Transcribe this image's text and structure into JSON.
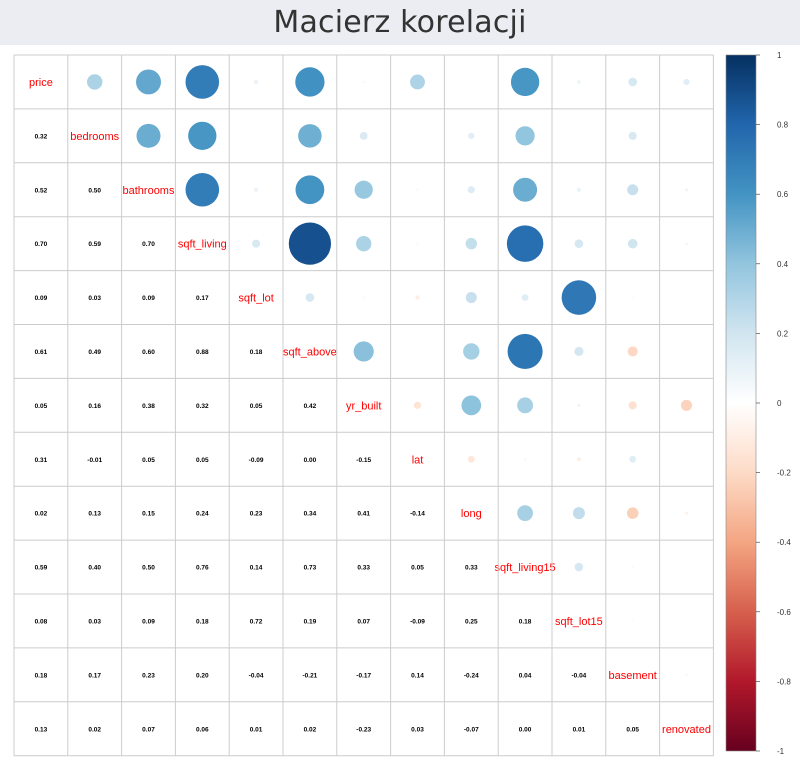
{
  "page": {
    "title": "Macierz korelacji"
  },
  "chart_data": {
    "type": "heatmap",
    "title": "Macierz korelacji",
    "variables": [
      "price",
      "bedrooms",
      "bathrooms",
      "sqft_living",
      "sqft_lot",
      "sqft_above",
      "yr_built",
      "lat",
      "long",
      "sqft_living15",
      "sqft_lot15",
      "basement",
      "renovated"
    ],
    "matrix": [
      [
        1.0,
        0.32,
        0.52,
        0.7,
        0.09,
        0.61,
        0.05,
        0.31,
        0.02,
        0.59,
        0.08,
        0.18,
        0.13
      ],
      [
        0.32,
        1.0,
        0.5,
        0.59,
        0.03,
        0.49,
        0.16,
        -0.01,
        0.13,
        0.4,
        0.03,
        0.17,
        0.02
      ],
      [
        0.52,
        0.5,
        1.0,
        0.7,
        0.09,
        0.6,
        0.38,
        0.05,
        0.15,
        0.5,
        0.09,
        0.23,
        0.07
      ],
      [
        0.7,
        0.59,
        0.7,
        1.0,
        0.17,
        0.88,
        0.32,
        0.05,
        0.24,
        0.76,
        0.18,
        0.2,
        0.06
      ],
      [
        0.09,
        0.03,
        0.09,
        0.17,
        1.0,
        0.18,
        0.05,
        -0.09,
        0.23,
        0.14,
        0.72,
        -0.04,
        0.01
      ],
      [
        0.61,
        0.49,
        0.6,
        0.88,
        0.18,
        1.0,
        0.42,
        0.0,
        0.34,
        0.73,
        0.19,
        -0.21,
        0.02
      ],
      [
        0.05,
        0.16,
        0.38,
        0.32,
        0.05,
        0.42,
        1.0,
        -0.15,
        0.41,
        0.33,
        0.07,
        -0.17,
        -0.23
      ],
      [
        0.31,
        -0.01,
        0.05,
        0.05,
        -0.09,
        0.0,
        -0.15,
        1.0,
        -0.14,
        0.05,
        -0.09,
        0.14,
        0.03
      ],
      [
        0.02,
        0.13,
        0.15,
        0.24,
        0.23,
        0.34,
        0.41,
        -0.14,
        1.0,
        0.33,
        0.25,
        -0.24,
        -0.07
      ],
      [
        0.59,
        0.4,
        0.5,
        0.76,
        0.14,
        0.73,
        0.33,
        0.05,
        0.33,
        1.0,
        0.18,
        0.04,
        0.0
      ],
      [
        0.08,
        0.03,
        0.09,
        0.18,
        0.72,
        0.19,
        0.07,
        -0.09,
        0.25,
        0.18,
        1.0,
        -0.04,
        0.01
      ],
      [
        0.18,
        0.17,
        0.23,
        0.2,
        -0.04,
        -0.21,
        -0.17,
        0.14,
        -0.24,
        0.04,
        -0.04,
        1.0,
        0.05
      ],
      [
        0.13,
        0.02,
        0.07,
        0.06,
        0.01,
        0.02,
        -0.23,
        0.03,
        -0.07,
        0.0,
        0.01,
        0.05,
        1.0
      ]
    ],
    "upper_triangle": "circle",
    "lower_triangle": "number",
    "diagonal": "label",
    "colorbar": {
      "range": [
        -1,
        1
      ],
      "ticks": [
        "1",
        "0.8",
        "0.6",
        "0.4",
        "0.2",
        "0",
        "-0.2",
        "-0.4",
        "-0.6",
        "-0.8",
        "-1"
      ],
      "palette": [
        "#67001f",
        "#b2182b",
        "#d6604d",
        "#f4a582",
        "#fddbc7",
        "#ffffff",
        "#d1e5f0",
        "#92c5de",
        "#4393c3",
        "#2166ac",
        "#053061"
      ]
    },
    "colors": {
      "label": "#ff0000",
      "number": "#000000",
      "grid": "#cccccc"
    }
  }
}
